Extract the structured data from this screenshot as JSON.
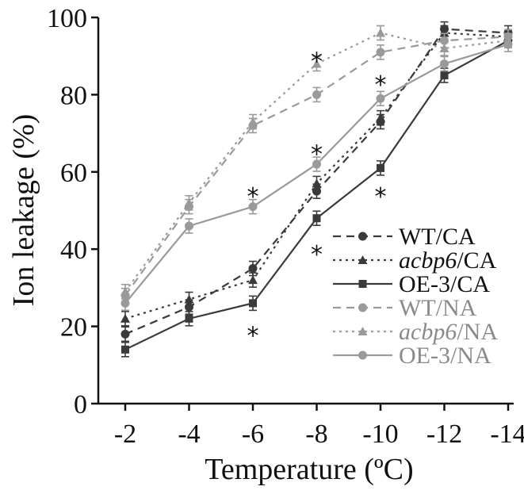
{
  "colors": {
    "CA": "#3a3a3a",
    "NA": "#9a9a9a",
    "axis": "#111111"
  },
  "chart_data": {
    "type": "line",
    "title": "",
    "xlabel": "Temperature (ºC)",
    "ylabel": "Ion leakage (%)",
    "categories": [
      "-2",
      "-4",
      "-6",
      "-8",
      "-10",
      "-12",
      "-14"
    ],
    "ylim": [
      0,
      100
    ],
    "yticks": [
      "0",
      "20",
      "40",
      "60",
      "80",
      "100"
    ],
    "grid": false,
    "legend_position": "right",
    "series": [
      {
        "name": "WT/CA",
        "values": [
          18,
          25,
          35,
          55,
          73,
          97,
          96
        ],
        "group": "CA",
        "dash": "10 7",
        "marker": "circle"
      },
      {
        "name": "acbp6/CA",
        "values": [
          22,
          27,
          32,
          57,
          74,
          96,
          95
        ],
        "group": "CA",
        "dash": "3 5",
        "marker": "triangle"
      },
      {
        "name": "OE-3/CA",
        "values": [
          14,
          22,
          26,
          48,
          61,
          85,
          94
        ],
        "group": "CA",
        "dash": "",
        "marker": "square"
      },
      {
        "name": "WT/NA",
        "values": [
          28,
          51,
          72,
          80,
          91,
          94,
          95
        ],
        "group": "NA",
        "dash": "10 7",
        "marker": "circle"
      },
      {
        "name": "acbp6/NA",
        "values": [
          29,
          52,
          73,
          88,
          96,
          92,
          94
        ],
        "group": "NA",
        "dash": "3 5",
        "marker": "triangle"
      },
      {
        "name": "OE-3/NA",
        "values": [
          26,
          46,
          51,
          62,
          79,
          88,
          93
        ],
        "group": "NA",
        "dash": "",
        "marker": "circle"
      }
    ],
    "significance": [
      {
        "x": "-6",
        "y": 54,
        "label": "*"
      },
      {
        "x": "-6",
        "y": 18,
        "label": "*"
      },
      {
        "x": "-8",
        "y": 89,
        "label": "*"
      },
      {
        "x": "-8",
        "y": 65,
        "label": "*"
      },
      {
        "x": "-8",
        "y": 39,
        "label": "*"
      },
      {
        "x": "-10",
        "y": 83,
        "label": "*"
      },
      {
        "x": "-10",
        "y": 54,
        "label": "*"
      }
    ]
  }
}
